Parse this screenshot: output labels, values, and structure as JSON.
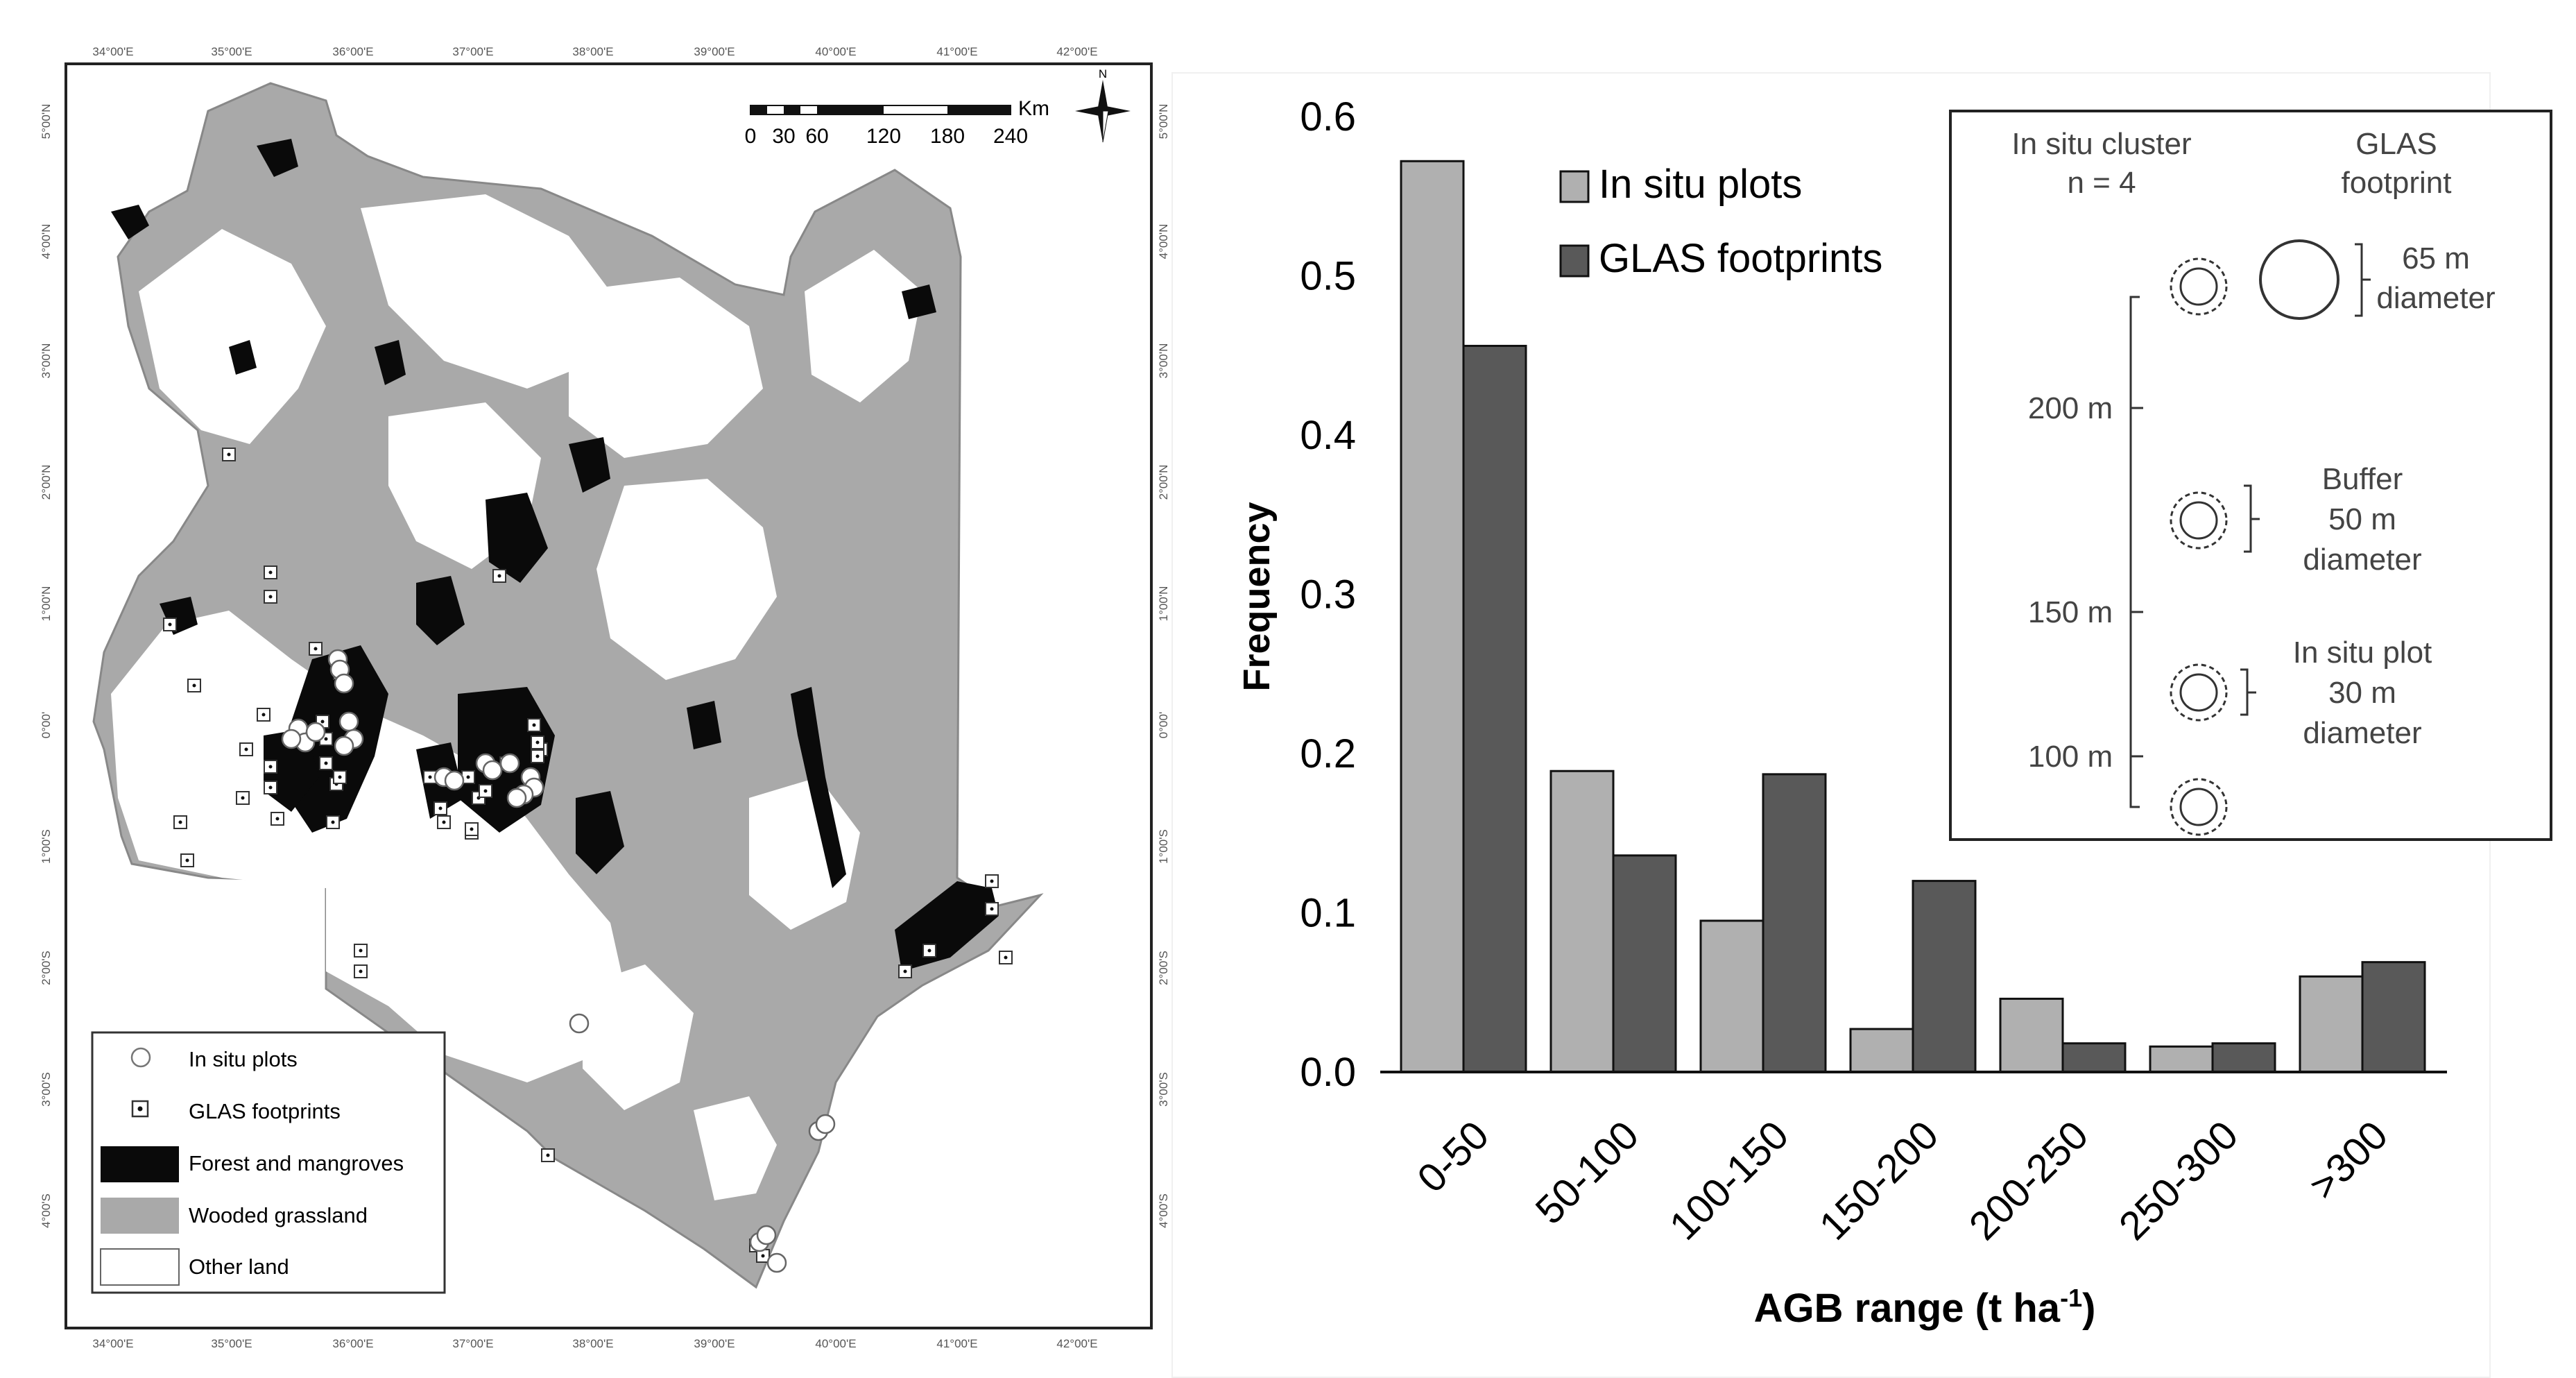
{
  "map": {
    "lon_labels": [
      "34°00'E",
      "35°00'E",
      "36°00'E",
      "37°00'E",
      "38°00'E",
      "39°00'E",
      "40°00'E",
      "41°00'E",
      "42°00'E"
    ],
    "lat_labels": [
      "5°00'N",
      "4°00'N",
      "3°00'N",
      "2°00'N",
      "1°00'N",
      "0°00'",
      "1°00'S",
      "2°00'S",
      "3°00'S",
      "4°00'S"
    ],
    "scalebar": {
      "unit": "Km",
      "ticks": [
        "0",
        "30",
        "60",
        "120",
        "180",
        "240"
      ]
    },
    "north_label": "N",
    "legend": [
      {
        "label": "In situ plots",
        "symbol": "circle"
      },
      {
        "label": "GLAS footprints",
        "symbol": "square-dot"
      },
      {
        "label": "Forest and mangroves",
        "color": "#0a0a0a"
      },
      {
        "label": "Wooded grassland",
        "color": "#a9a9a9"
      },
      {
        "label": "Other land",
        "color": "#ffffff"
      }
    ]
  },
  "chart_data": {
    "type": "bar",
    "categories": [
      "0-50",
      "50-100",
      "100-150",
      "150-200",
      "200-250",
      "250-300",
      ">300"
    ],
    "series": [
      {
        "name": "In situ plots",
        "color": "#b0b0b0",
        "values": [
          0.572,
          0.189,
          0.095,
          0.027,
          0.046,
          0.016,
          0.06
        ]
      },
      {
        "name": "GLAS footprints",
        "color": "#595959",
        "values": [
          0.456,
          0.136,
          0.187,
          0.12,
          0.018,
          0.018,
          0.069
        ]
      }
    ],
    "ylim": [
      0,
      0.6
    ],
    "yticks": [
      "0.0",
      "0.1",
      "0.2",
      "0.3",
      "0.4",
      "0.5",
      "0.6"
    ],
    "ylabel": "Frequency",
    "xlabel": "AGB range (t ha",
    "xlabel_sup": "-1",
    "xlabel_close": ")"
  },
  "inset": {
    "col1": [
      "In situ cluster",
      "n = 4"
    ],
    "col2": [
      "GLAS",
      "footprint"
    ],
    "footprint_note": [
      "65 m",
      "diameter"
    ],
    "buffer_note": [
      "Buffer",
      "50 m",
      "diameter"
    ],
    "plot_note": [
      "In situ plot",
      "30 m",
      "diameter"
    ],
    "distances": [
      "200 m",
      "150 m",
      "100 m"
    ]
  }
}
